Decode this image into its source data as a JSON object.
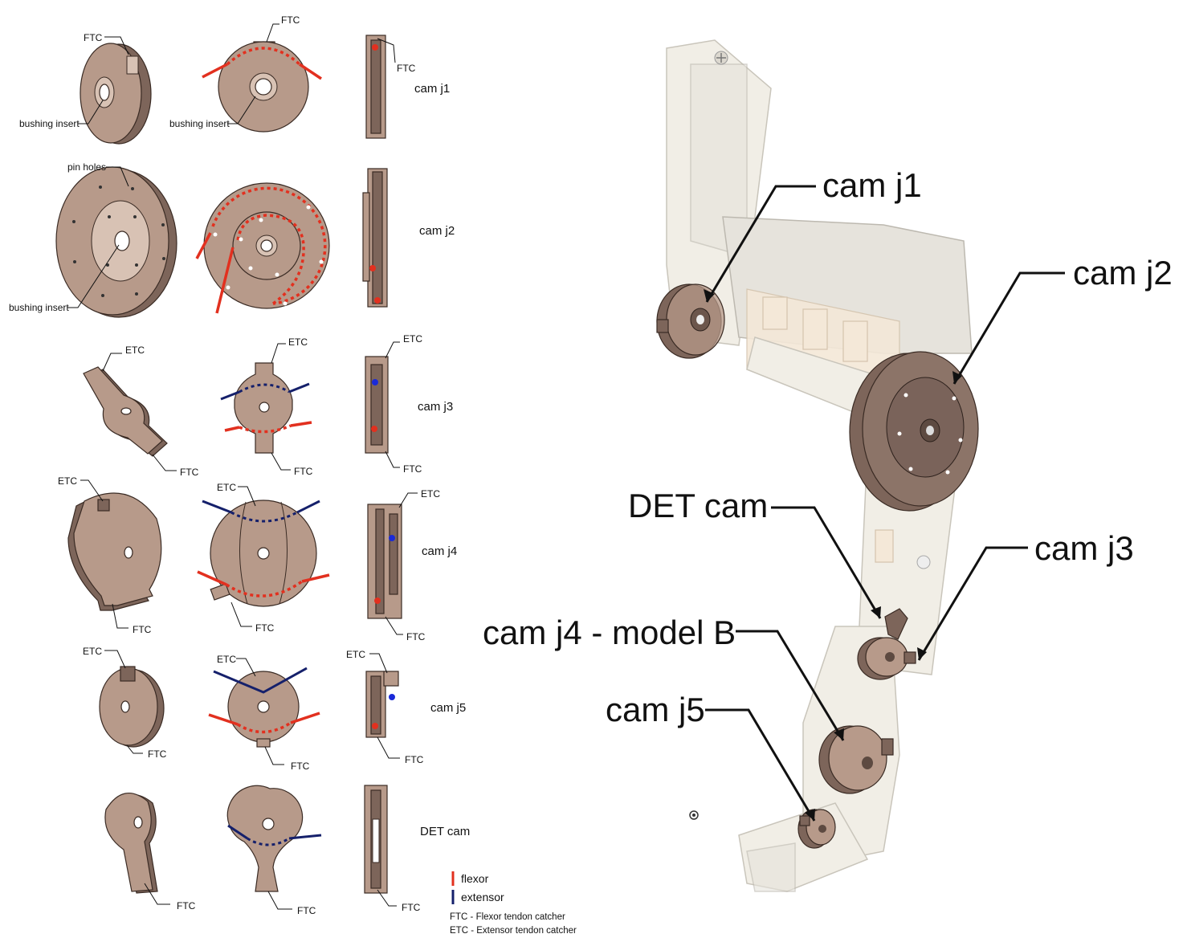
{
  "left_panel": {
    "rows": [
      {
        "name": "cam j1",
        "callouts": [
          "FTC",
          "bushing insert",
          "FTC",
          "bushing insert",
          "FTC"
        ]
      },
      {
        "name": "cam j2",
        "callouts": [
          "pin holes",
          "bushing insert"
        ]
      },
      {
        "name": "cam j3",
        "callouts": [
          "ETC",
          "FTC",
          "ETC",
          "FTC",
          "ETC",
          "FTC"
        ]
      },
      {
        "name": "cam j4",
        "callouts": [
          "ETC",
          "FTC",
          "ETC",
          "FTC",
          "ETC",
          "FTC"
        ]
      },
      {
        "name": "cam j5",
        "callouts": [
          "ETC",
          "FTC",
          "ETC",
          "FTC",
          "ETC",
          "FTC"
        ]
      },
      {
        "name": "DET cam",
        "callouts": [
          "FTC",
          "FTC",
          "FTC"
        ]
      }
    ],
    "legend": {
      "flexor": "flexor",
      "extensor": "extensor",
      "flexor_color": "#e2301f",
      "extensor_color": "#15206b",
      "note_ftc": "FTC - Flexor tendon catcher",
      "note_etc": "ETC - Extensor tendon catcher"
    }
  },
  "right_panel": {
    "labels": {
      "cam_j1": "cam j1",
      "cam_j2": "cam j2",
      "det_cam": "DET cam",
      "cam_j3": "cam j3",
      "cam_j4": "cam j4 - model B",
      "cam_j5": "cam j5"
    }
  }
}
